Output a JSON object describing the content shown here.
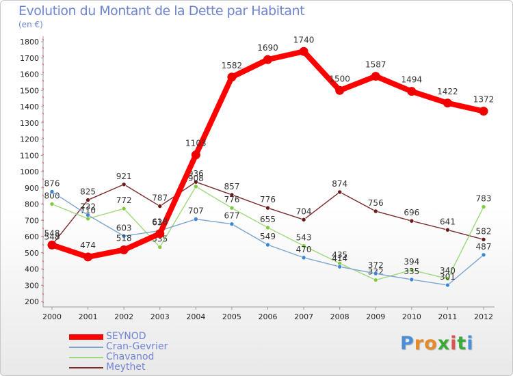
{
  "header": {
    "title": "Evolution du Montant de la Dette par Habitant",
    "subtitle": "(en €)"
  },
  "logo": {
    "letters": [
      "P",
      "r",
      "o",
      "x",
      "i",
      "t",
      "i"
    ],
    "colors": [
      "#4a8fd6",
      "#e48a2a",
      "#e48a2a",
      "#3aaa3a",
      "#d9534f",
      "#3aaa3a",
      "#4a8fd6"
    ]
  },
  "chart_data": {
    "type": "line",
    "title": "Evolution du Montant de la Dette par Habitant",
    "subtitle": "(en €)",
    "xlabel": "",
    "ylabel": "",
    "x": [
      "2000",
      "2001",
      "2002",
      "2003",
      "2004",
      "2005",
      "2006",
      "2007",
      "2008",
      "2009",
      "2010",
      "2011",
      "2012"
    ],
    "ylim": [
      200,
      1800
    ],
    "yticks": [
      200,
      300,
      400,
      500,
      600,
      700,
      800,
      900,
      1000,
      1100,
      1200,
      1300,
      1400,
      1500,
      1600,
      1700,
      1800
    ],
    "grid": false,
    "legend_position": "bottom-left",
    "series": [
      {
        "name": "Meythet",
        "color": "#7a2a2a",
        "marker": "#6a1a1a",
        "width": 1.4,
        "values": [
          548,
          825,
          921,
          787,
          936,
          857,
          776,
          704,
          874,
          756,
          696,
          641,
          582
        ],
        "labels": [
          "548",
          "825",
          "921",
          "787",
          "936",
          "857",
          "776",
          "704",
          "874",
          "756",
          "696",
          "641",
          "582"
        ]
      },
      {
        "name": "Chavanod",
        "color": "#9ed87a",
        "marker": "#7fcc3f",
        "width": 1.4,
        "values": [
          800,
          710,
          772,
          535,
          908,
          776,
          655,
          543,
          435,
          332,
          394,
          340,
          783
        ],
        "labels": [
          "800",
          "710",
          "772",
          "535",
          "908",
          "776",
          "655",
          "543",
          "435",
          "332",
          "394",
          "340",
          "783"
        ]
      },
      {
        "name": "Cran-Gevrier",
        "color": "#7aa4cf",
        "marker": "#3d86d6",
        "width": 1.4,
        "values": [
          876,
          732,
          603,
          636,
          707,
          677,
          549,
          470,
          414,
          372,
          335,
          301,
          487
        ],
        "labels": [
          "876",
          "732",
          "603",
          "636",
          "707",
          "677",
          "549",
          "470",
          "414",
          "372",
          "335",
          "301",
          "487"
        ]
      },
      {
        "name": "SEYNOD",
        "color": "#ff0000",
        "marker": "#ee0000",
        "width": 8,
        "values": [
          548,
          474,
          518,
          618,
          1103,
          1582,
          1690,
          1740,
          1500,
          1587,
          1494,
          1422,
          1372
        ],
        "labels": [
          "548",
          "474",
          "518",
          "618",
          "1103",
          "1582",
          "1690",
          "1740",
          "1500",
          "1587",
          "1494",
          "1422",
          "1372"
        ]
      }
    ]
  }
}
